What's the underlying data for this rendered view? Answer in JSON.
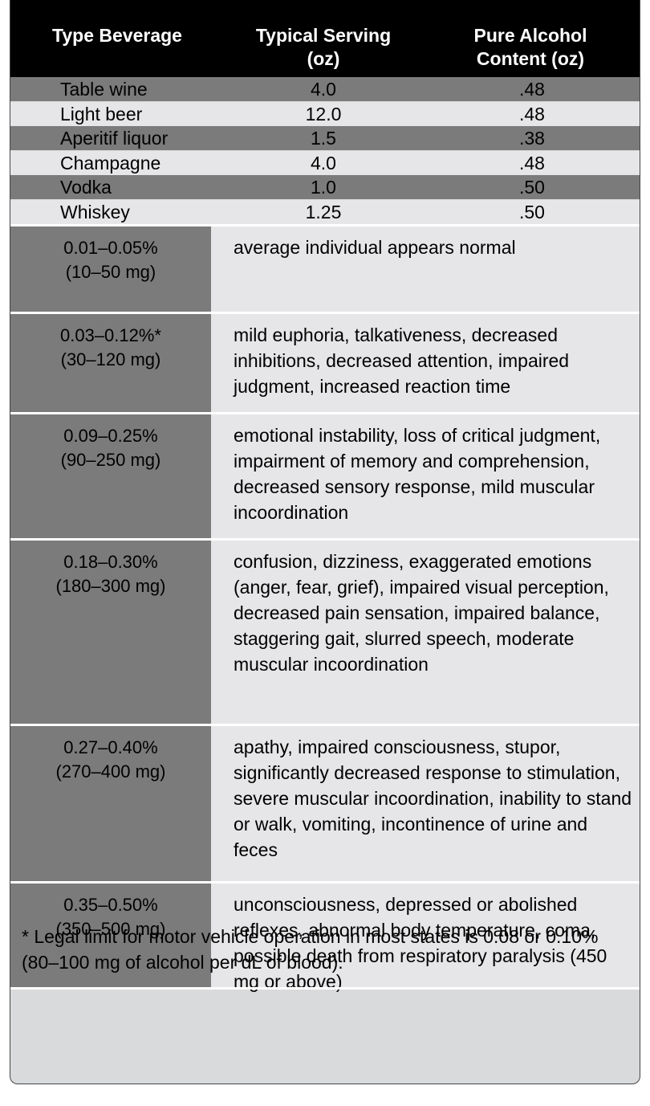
{
  "header": {
    "col1": "Type Beverage",
    "col2_line1": "Typical Serving",
    "col2_line2": "(oz)",
    "col3_line1": "Pure Alcohol",
    "col3_line2": "Content (oz)"
  },
  "beverages": [
    {
      "type": "Table wine",
      "serving": "4.0",
      "alcohol": ".48"
    },
    {
      "type": "Light beer",
      "serving": "12.0",
      "alcohol": ".48"
    },
    {
      "type": "Aperitif liquor",
      "serving": "1.5",
      "alcohol": ".38"
    },
    {
      "type": "Champagne",
      "serving": "4.0",
      "alcohol": ".48"
    },
    {
      "type": "Vodka",
      "serving": "1.0",
      "alcohol": ".50"
    },
    {
      "type": "Whiskey",
      "serving": "1.25",
      "alcohol": ".50"
    }
  ],
  "bac_levels": [
    {
      "pct": "0.01–0.05%",
      "mg": "(10–50 mg)",
      "effects": "average individual appears normal"
    },
    {
      "pct": "0.03–0.12%*",
      "mg": "(30–120 mg)",
      "effects": "mild euphoria, talkativeness, decreased inhibitions, decreased attention, impaired judgment, increased reaction time"
    },
    {
      "pct": "0.09–0.25%",
      "mg": "(90–250 mg)",
      "effects": "emotional instability, loss of critical judgment, impairment of memory and comprehension, decreased sensory response, mild muscular incoordination"
    },
    {
      "pct": "0.18–0.30%",
      "mg": "(180–300 mg)",
      "effects": "confusion, dizziness, exaggerated emotions (anger, fear, grief), impaired visual perception, decreased pain sensation, impaired balance, staggering gait, slurred speech, moderate muscular incoordination"
    },
    {
      "pct": "0.27–0.40%",
      "mg": "(270–400 mg)",
      "effects": "apathy, impaired consciousness, stupor, significantly decreased response to stimulation, severe muscular incoordination, inability to stand or walk, vomiting, incontinence of urine and feces"
    },
    {
      "pct": "0.35–0.50%",
      "mg": "(350–500 mg)",
      "effects": "unconsciousness, depressed or abolished reflexes, abnormal body temperature, coma, possible death from respiratory paralysis (450 mg or above)"
    }
  ],
  "footnote": "* Legal limit for motor vehicle operation in most states is 0.08 or 0.10% (80–100 mg of alcohol per dL of blood)."
}
